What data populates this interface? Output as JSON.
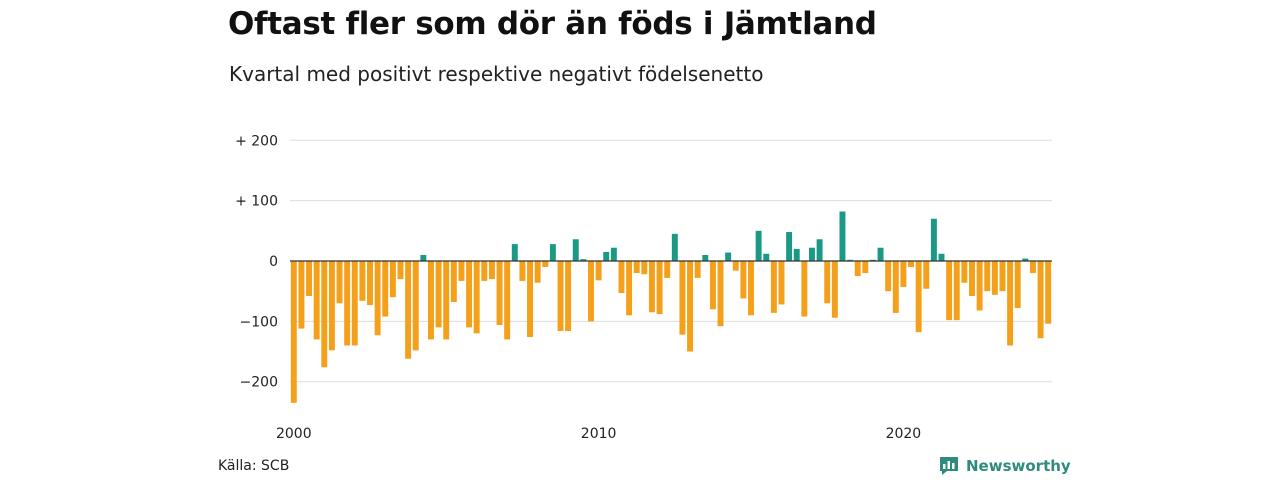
{
  "title": "Oftast fler som dör än föds i Jämtland",
  "subtitle": "Kvartal med positivt respektive negativt födelsenetto",
  "source": "Källa: SCB",
  "brand": "Newsworthy",
  "colors": {
    "positive": "#1a9985",
    "negative": "#f5a01a",
    "grid": "#dddddd",
    "zero": "#333333",
    "brand": "#2e8b7e"
  },
  "chart_data": {
    "type": "bar",
    "x_unit": "quarter",
    "x_start": "2000 Q1",
    "ylim": [
      -250,
      210
    ],
    "y_ticks": [
      {
        "value": 200,
        "label": "+ 200"
      },
      {
        "value": 100,
        "label": "+ 100"
      },
      {
        "value": 0,
        "label": "0"
      },
      {
        "value": -100,
        "label": "−100"
      },
      {
        "value": -200,
        "label": "−200"
      }
    ],
    "x_ticks": [
      {
        "label": "2000",
        "index": 0
      },
      {
        "label": "2010",
        "index": 40
      },
      {
        "label": "2020",
        "index": 80
      }
    ],
    "grid": true,
    "values": [
      -235,
      -112,
      -58,
      -130,
      -176,
      -148,
      -70,
      -140,
      -140,
      -66,
      -73,
      -123,
      -92,
      -60,
      -30,
      -162,
      -148,
      10,
      -130,
      -110,
      -130,
      -68,
      -33,
      -110,
      -120,
      -33,
      -30,
      -106,
      -130,
      28,
      -33,
      -126,
      -36,
      -10,
      28,
      -116,
      -116,
      36,
      3,
      -100,
      -32,
      15,
      22,
      -53,
      -90,
      -20,
      -22,
      -85,
      -88,
      -28,
      45,
      -122,
      -150,
      -28,
      10,
      -80,
      -108,
      14,
      -16,
      -62,
      -90,
      50,
      12,
      -86,
      -72,
      48,
      20,
      -92,
      22,
      36,
      -70,
      -94,
      82,
      2,
      -25,
      -20,
      2,
      22,
      -50,
      -86,
      -43,
      -10,
      -118,
      -46,
      70,
      12,
      -98,
      -98,
      -36,
      -58,
      -82,
      -50,
      -56,
      -50,
      -140,
      -78,
      4,
      -20,
      -128,
      -104
    ]
  }
}
